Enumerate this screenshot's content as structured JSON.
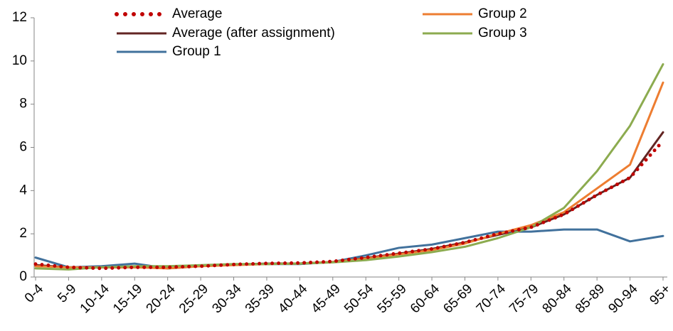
{
  "chart_data": {
    "type": "line",
    "categories": [
      "0-4",
      "5-9",
      "10-14",
      "15-19",
      "20-24",
      "25-29",
      "30-34",
      "35-39",
      "40-44",
      "45-49",
      "50-54",
      "55-59",
      "60-64",
      "65-69",
      "70-74",
      "75-79",
      "80-84",
      "85-89",
      "90-94",
      "95+"
    ],
    "series": [
      {
        "name": "Average",
        "color": "#c00000",
        "line_style": "dotted",
        "values": [
          0.6,
          0.45,
          0.4,
          0.45,
          0.45,
          0.5,
          0.58,
          0.63,
          0.65,
          0.72,
          0.9,
          1.1,
          1.3,
          1.6,
          2.0,
          2.3,
          2.9,
          3.8,
          4.6,
          6.3
        ]
      },
      {
        "name": "Average (after assignment)",
        "color": "#632523",
        "line_style": "solid",
        "values": [
          0.55,
          0.45,
          0.45,
          0.45,
          0.45,
          0.5,
          0.58,
          0.62,
          0.63,
          0.7,
          0.88,
          1.08,
          1.3,
          1.6,
          1.95,
          2.3,
          2.9,
          3.8,
          4.6,
          6.7
        ]
      },
      {
        "name": "Group 1",
        "color": "#41719c",
        "line_style": "solid",
        "values": [
          0.9,
          0.45,
          0.5,
          0.62,
          0.4,
          0.5,
          0.58,
          0.6,
          0.6,
          0.7,
          1.0,
          1.35,
          1.5,
          1.8,
          2.1,
          2.1,
          2.2,
          2.2,
          1.65,
          1.9
        ]
      },
      {
        "name": "Group 2",
        "color": "#ed7d31",
        "line_style": "solid",
        "values": [
          0.5,
          0.45,
          0.45,
          0.45,
          0.4,
          0.5,
          0.55,
          0.6,
          0.62,
          0.7,
          0.85,
          1.05,
          1.25,
          1.55,
          2.0,
          2.4,
          3.0,
          4.1,
          5.2,
          9.0
        ]
      },
      {
        "name": "Group 3",
        "color": "#8cab4f",
        "line_style": "solid",
        "values": [
          0.4,
          0.35,
          0.45,
          0.5,
          0.5,
          0.55,
          0.6,
          0.6,
          0.62,
          0.68,
          0.78,
          0.95,
          1.15,
          1.4,
          1.8,
          2.3,
          3.2,
          4.9,
          7.0,
          9.85
        ]
      }
    ],
    "ylim": [
      0,
      12
    ],
    "yticks": [
      0,
      2,
      4,
      6,
      8,
      10,
      12
    ],
    "grid": false,
    "legend": "top"
  }
}
